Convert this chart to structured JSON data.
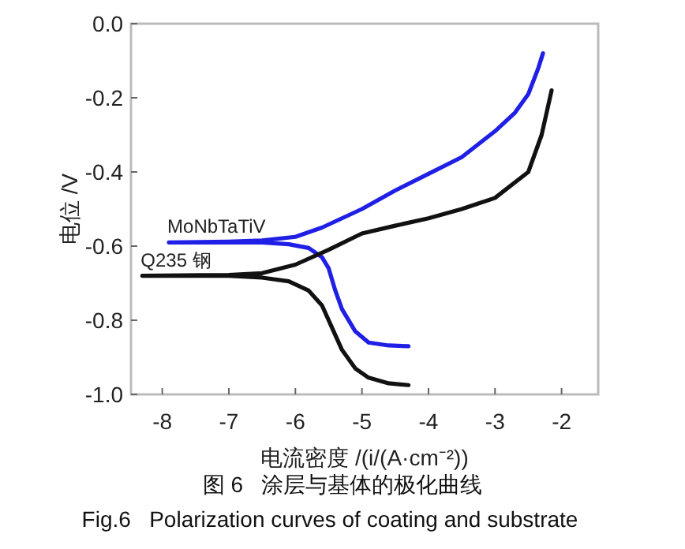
{
  "chart_data": {
    "type": "line",
    "title": "图 6   涂层与基体的极化曲线",
    "subtitle": "Fig.6   Polarization curves of coating and substrate",
    "xlabel": "电流密度 /(i/(A·cm⁻²))",
    "ylabel": "电位 /V",
    "xlim": [
      -8.47,
      -1.45
    ],
    "ylim": [
      -1.0,
      0.0
    ],
    "xticks": [
      -8,
      -7,
      -6,
      -5,
      -4,
      -3,
      -2
    ],
    "yticks": [
      {
        "value": -1.0,
        "label": "-1.0"
      },
      {
        "value": -0.8,
        "label": "-0.8"
      },
      {
        "value": -0.6,
        "label": "-0.6"
      },
      {
        "value": -0.4,
        "label": "-0.4"
      },
      {
        "value": -0.2,
        "label": "-0.2"
      },
      {
        "value": 0.0,
        "label": "0.0"
      }
    ],
    "grid": false,
    "legend": false,
    "marker": "none",
    "line_style": "solid",
    "series": [
      {
        "name": "MoNbTaTiV",
        "color": "#1f1fe6",
        "x": [
          -4.3,
          -4.6,
          -4.9,
          -5.1,
          -5.3,
          -5.4,
          -5.5,
          -5.6,
          -5.8,
          -6.1,
          -6.5,
          -7.9,
          -7.0,
          -6.5,
          -6.0,
          -5.6,
          -5.0,
          -4.5,
          -4.0,
          -3.5,
          -3.0,
          -2.7,
          -2.5,
          -2.35,
          -2.28
        ],
        "values": [
          -0.87,
          -0.868,
          -0.86,
          -0.83,
          -0.77,
          -0.72,
          -0.66,
          -0.63,
          -0.605,
          -0.595,
          -0.59,
          -0.59,
          -0.588,
          -0.585,
          -0.575,
          -0.55,
          -0.5,
          -0.45,
          -0.405,
          -0.36,
          -0.29,
          -0.24,
          -0.19,
          -0.12,
          -0.08
        ]
      },
      {
        "name": "Q235 钢",
        "color": "#111111",
        "x": [
          -4.3,
          -4.6,
          -4.9,
          -5.1,
          -5.3,
          -5.45,
          -5.6,
          -5.8,
          -6.1,
          -6.5,
          -7.0,
          -8.3,
          -7.0,
          -6.5,
          -6.0,
          -5.5,
          -5.0,
          -4.5,
          -4.0,
          -3.5,
          -3.0,
          -2.5,
          -2.3,
          -2.15
        ],
        "values": [
          -0.975,
          -0.97,
          -0.955,
          -0.93,
          -0.88,
          -0.82,
          -0.76,
          -0.72,
          -0.695,
          -0.685,
          -0.68,
          -0.68,
          -0.678,
          -0.673,
          -0.65,
          -0.61,
          -0.566,
          -0.545,
          -0.525,
          -0.5,
          -0.47,
          -0.4,
          -0.3,
          -0.18
        ]
      }
    ]
  }
}
